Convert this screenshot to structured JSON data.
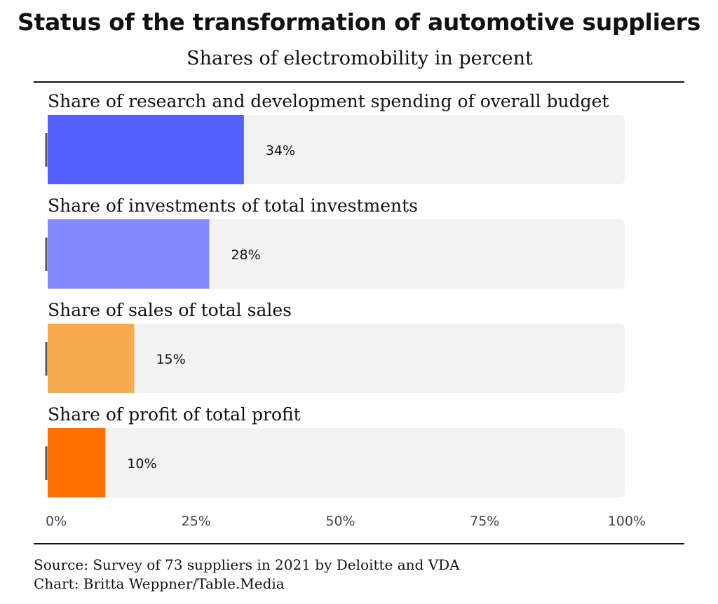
{
  "title": "Status of the transformation of automotive suppliers",
  "subtitle": "Shares of electromobility in percent",
  "source_line": "Source: Survey of 73 suppliers in 2021 by Deloitte and VDA",
  "credit_line": "Chart: Britta Weppner/Table.Media",
  "chart_data": {
    "type": "bar",
    "orientation": "horizontal",
    "unit": "%",
    "xlim": [
      0,
      100
    ],
    "grid": false,
    "ticks": [
      "0%",
      "25%",
      "50%",
      "75%",
      "100%"
    ],
    "bars": [
      {
        "label": "Share of research and development spending of overall budget",
        "value": 34,
        "value_label": "34%",
        "color": "#5460ff"
      },
      {
        "label": "Share of investments of total investments",
        "value": 28,
        "value_label": "28%",
        "color": "#8589ff"
      },
      {
        "label": "Share of sales of total sales",
        "value": 15,
        "value_label": "15%",
        "color": "#f7aa4e"
      },
      {
        "label": "Share of profit of total profit",
        "value": 10,
        "value_label": "10%",
        "color": "#ff6f00"
      }
    ],
    "track_color": "#f2f2f2"
  }
}
